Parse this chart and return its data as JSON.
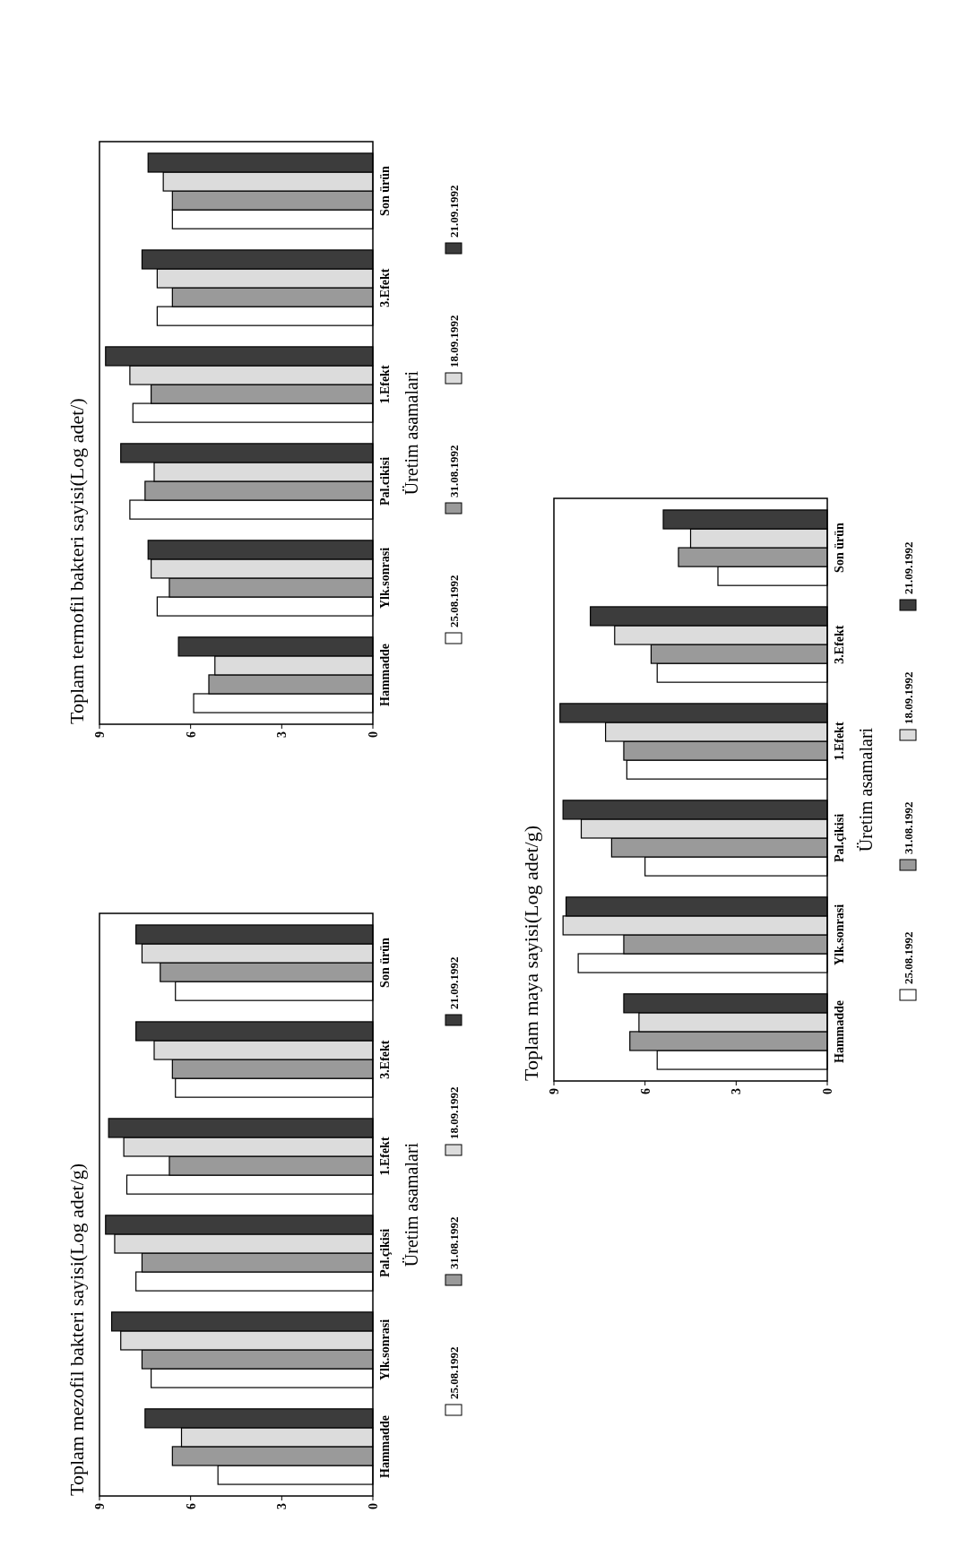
{
  "chart_data": [
    {
      "type": "bar",
      "orientation": "horizontal",
      "title": "Toplam mezofil bakteri sayisi(Log adet/g)",
      "ylabel": "Üretim asamalari",
      "categories": [
        "Son ürün",
        "3.Efekt",
        "1.Efekt",
        "Pal.çikisi",
        "Ylk.sonrasi",
        "Hammadde"
      ],
      "xlim": [
        9,
        0
      ],
      "xticks": [
        9,
        6,
        3,
        0
      ],
      "legend": "right",
      "series": [
        {
          "name": "25.08.1992",
          "color": "#ffffff",
          "values": [
            6.5,
            6.5,
            8.1,
            7.8,
            7.3,
            5.1
          ]
        },
        {
          "name": "31.08.1992",
          "color": "#9a9a9a",
          "values": [
            7.0,
            6.6,
            6.7,
            7.6,
            7.6,
            6.6
          ]
        },
        {
          "name": "18.09.1992",
          "color": "#dcdcdc",
          "values": [
            7.6,
            7.2,
            8.2,
            8.5,
            8.3,
            6.3
          ]
        },
        {
          "name": "21.09.1992",
          "color": "#3c3c3c",
          "values": [
            7.8,
            7.8,
            8.7,
            8.8,
            8.6,
            7.5
          ]
        }
      ]
    },
    {
      "type": "bar",
      "orientation": "horizontal",
      "title": "Toplam termofil bakteri sayisi(Log adet/)",
      "ylabel": "Üretim asamalari",
      "categories": [
        "Son ürün",
        "3.Efekt",
        "1.Efekt",
        "Pal.cikisi",
        "Ylk.sonrasi",
        "Hammadde"
      ],
      "xlim": [
        9,
        0
      ],
      "xticks": [
        9,
        6,
        3,
        0
      ],
      "legend": "right",
      "series": [
        {
          "name": "25.08.1992",
          "color": "#ffffff",
          "values": [
            6.6,
            7.1,
            7.9,
            8.0,
            7.1,
            5.9
          ]
        },
        {
          "name": "31.08.1992",
          "color": "#9a9a9a",
          "values": [
            6.6,
            6.6,
            7.3,
            7.5,
            6.7,
            5.4
          ]
        },
        {
          "name": "18.09.1992",
          "color": "#dcdcdc",
          "values": [
            6.9,
            7.1,
            8.0,
            7.2,
            7.3,
            5.2
          ]
        },
        {
          "name": "21.09.1992",
          "color": "#3c3c3c",
          "values": [
            7.4,
            7.6,
            8.8,
            8.3,
            7.4,
            6.4
          ]
        }
      ]
    },
    {
      "type": "bar",
      "orientation": "horizontal",
      "title": "Toplam maya sayisi(Log adet/g)",
      "ylabel": "Üretim asamalari",
      "categories": [
        "Son ürün",
        "3.Efekt",
        "1.Efekt",
        "Pal.çikisi",
        "Ylk.sonrasi",
        "Hammadde"
      ],
      "xlim": [
        9,
        0
      ],
      "xticks": [
        9,
        6,
        3,
        0
      ],
      "legend": "right",
      "series": [
        {
          "name": "25.08.1992",
          "color": "#ffffff",
          "values": [
            3.6,
            5.6,
            6.6,
            6.0,
            8.2,
            5.6
          ]
        },
        {
          "name": "31.08.1992",
          "color": "#9a9a9a",
          "values": [
            4.9,
            5.8,
            6.7,
            7.1,
            6.7,
            6.5
          ]
        },
        {
          "name": "18.09.1992",
          "color": "#dcdcdc",
          "values": [
            4.5,
            7.0,
            7.3,
            8.1,
            8.7,
            6.2
          ]
        },
        {
          "name": "21.09.1992",
          "color": "#3c3c3c",
          "values": [
            5.4,
            7.8,
            8.8,
            8.7,
            8.6,
            6.7
          ]
        }
      ]
    }
  ]
}
